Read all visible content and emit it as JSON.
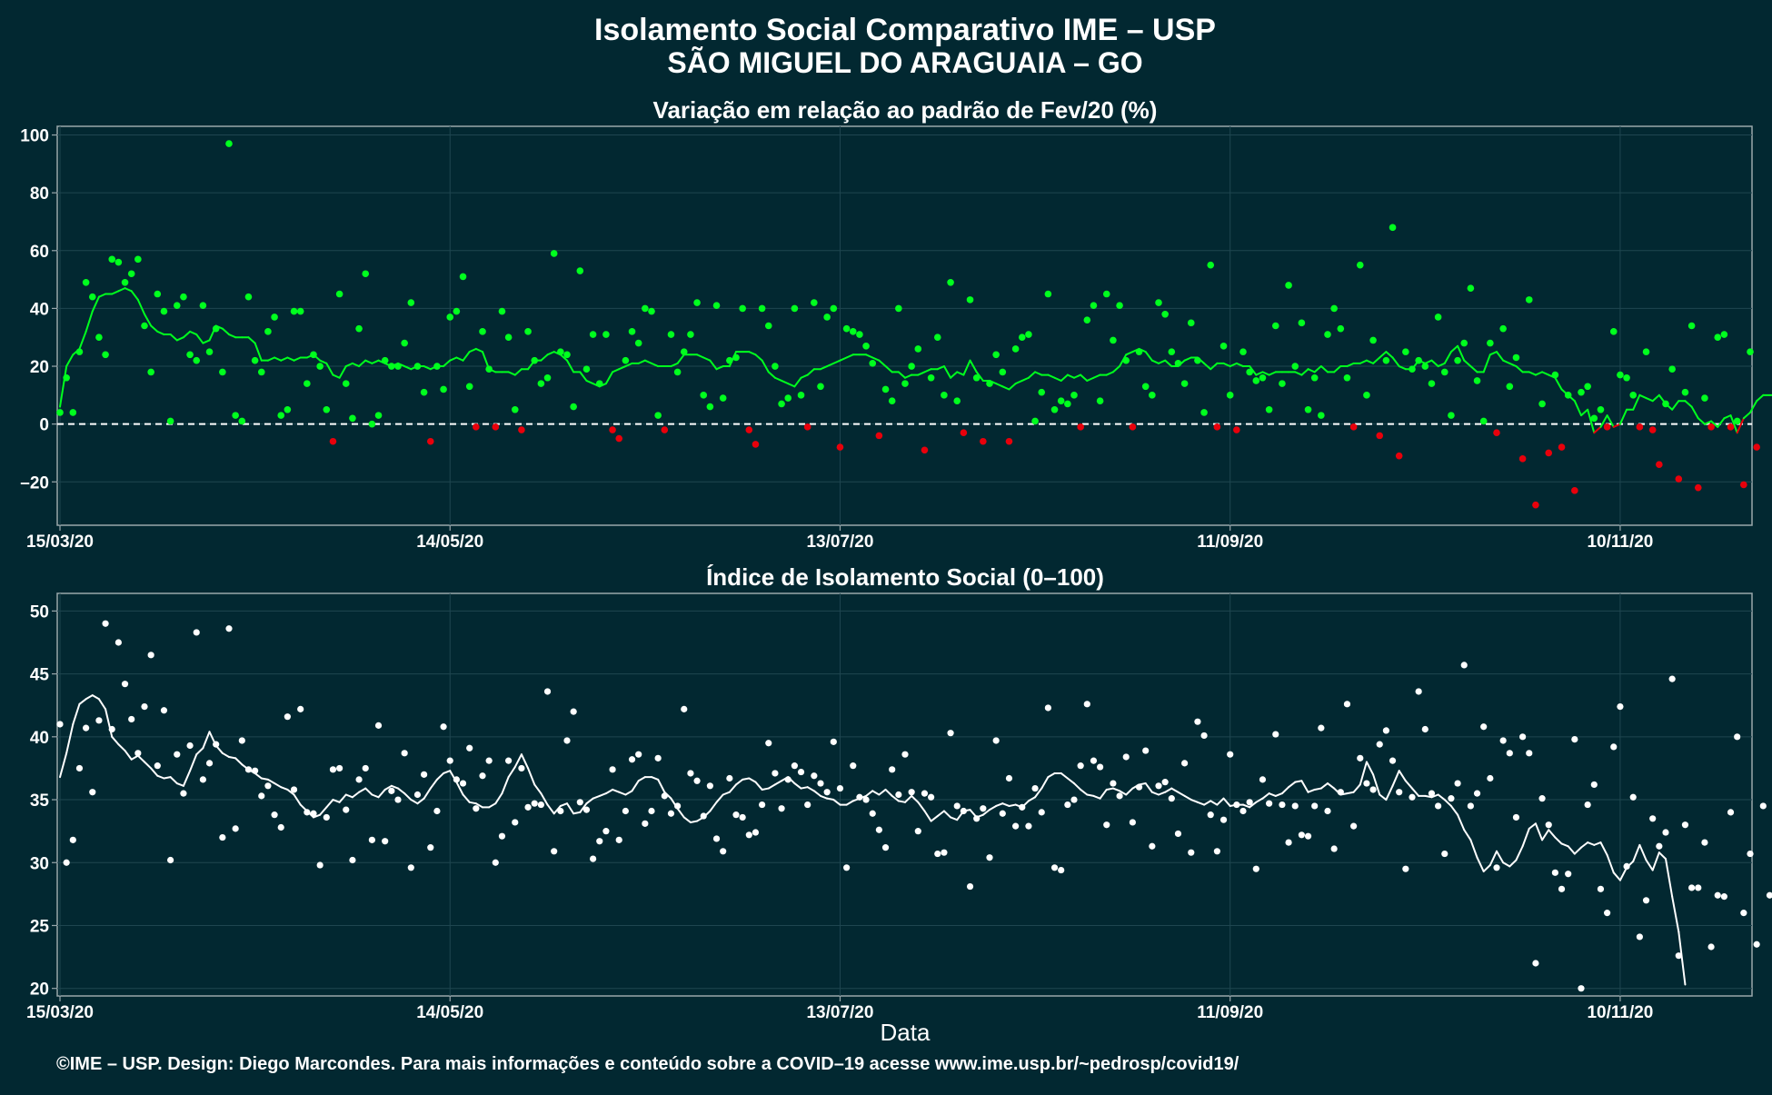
{
  "header": {
    "title": "Isolamento Social Comparativo IME – USP",
    "subtitle": "SÃO MIGUEL DO ARAGUAIA – GO"
  },
  "footer": {
    "credit": "©IME – USP. Design: Diego Marcondes. Para mais informações e conteúdo sobre a COVID–19 acesse www.ime.usp.br/~pedrosp/covid19/"
  },
  "colors": {
    "background": "#022831",
    "panel_border": "#9aa7ab",
    "grid": "#1f4650",
    "positive": "#00ff1e",
    "negative": "#e8000b",
    "index": "#ffffff"
  },
  "chart_data": [
    {
      "type": "scatter",
      "title": "Variação em relação ao padrão de Fev/20 (%)",
      "xlabel": "",
      "ylabel": "",
      "x_start": "15/03/20",
      "x_end": "30/11/20",
      "x_ticks": [
        "15/03/20",
        "14/05/20",
        "13/07/20",
        "11/09/20",
        "10/11/20"
      ],
      "ylim": [
        -35,
        103
      ],
      "y_ticks": [
        -20,
        0,
        20,
        40,
        60,
        80,
        100
      ],
      "y_tick_labels": [
        "–20",
        "0",
        "20",
        "40",
        "60",
        "80",
        "100"
      ],
      "reference_line": 0,
      "grid": true,
      "color_rule": "points and moving-average segments are green when ≥ 0 and red when < 0",
      "series": [
        {
          "values": [
            4,
            16,
            4,
            25,
            49,
            44,
            30,
            24,
            57,
            56,
            49,
            52,
            57,
            34,
            18,
            45,
            39,
            1,
            41,
            44,
            24,
            22,
            41,
            25,
            33,
            18,
            97,
            3,
            1,
            44,
            22,
            18,
            32,
            37,
            3,
            5,
            39,
            39,
            14,
            24,
            20,
            5,
            -6,
            45,
            14,
            2,
            33,
            52,
            0,
            3,
            22,
            20,
            20,
            28,
            42,
            20,
            11,
            -6,
            20,
            12,
            37,
            39,
            51,
            13,
            -1,
            32,
            19,
            -1,
            39,
            30,
            5,
            -2,
            32,
            22,
            14,
            16,
            59,
            25,
            24,
            6,
            53,
            19,
            31,
            14,
            31,
            -2,
            -5,
            22,
            32,
            28,
            40,
            39,
            3,
            -2,
            31,
            18,
            25,
            31,
            42,
            10,
            6,
            41,
            9,
            22,
            23,
            40,
            -2,
            -7,
            40,
            34,
            20,
            7,
            9,
            40,
            10,
            -1,
            42,
            13,
            37,
            40,
            -8,
            33,
            32,
            31,
            27,
            21,
            -4,
            12,
            8,
            40,
            14,
            20,
            26,
            -9,
            16,
            30,
            10,
            49,
            8,
            -3,
            43,
            16,
            -6,
            14,
            24,
            18,
            -6,
            26,
            30,
            31,
            1,
            11,
            45,
            5,
            8,
            7,
            10,
            -1,
            36,
            41,
            8,
            45,
            29,
            41,
            22,
            -1,
            25,
            13,
            10,
            42,
            38,
            25,
            21,
            14,
            35,
            22,
            4,
            55,
            -1,
            27,
            10,
            -2,
            25,
            18,
            15,
            16,
            5,
            34,
            14,
            48,
            20,
            35,
            5,
            16,
            3,
            31,
            40,
            33,
            16,
            -1,
            55,
            10,
            29,
            -4,
            22,
            68,
            -11,
            25,
            19,
            22,
            20,
            14,
            37,
            18,
            3,
            22,
            28,
            47,
            15,
            1,
            28,
            -3,
            33,
            13,
            23,
            -12,
            43,
            -28,
            7,
            -10,
            17,
            -8,
            10,
            -23,
            11,
            13,
            2,
            5,
            -1,
            32,
            17,
            16,
            10,
            -1,
            25,
            -2,
            -14,
            7,
            19,
            -19,
            11,
            34,
            -22,
            9,
            -1,
            30,
            31,
            -1,
            1,
            -21,
            25,
            -8
          ],
          "moving_average": [
            6,
            20,
            24,
            26,
            32,
            39,
            44,
            45,
            45,
            46,
            47,
            46,
            43,
            38,
            34,
            32,
            31,
            31,
            29,
            30,
            32,
            31,
            28,
            29,
            34,
            33,
            31,
            30,
            30,
            30,
            28,
            22,
            22,
            23,
            22,
            23,
            22,
            23,
            23,
            24,
            22,
            21,
            17,
            16,
            20,
            21,
            20,
            22,
            21,
            22,
            21,
            20,
            21,
            20,
            19,
            20,
            20,
            19,
            20,
            20,
            22,
            23,
            22,
            25,
            26,
            25,
            19,
            18,
            18,
            18,
            17,
            19,
            19,
            22,
            22,
            24,
            25,
            24,
            22,
            18,
            18,
            15,
            14,
            13,
            14,
            18,
            19,
            20,
            21,
            21,
            22,
            21,
            20,
            20,
            20,
            21,
            24,
            24,
            24,
            23,
            22,
            19,
            20,
            20,
            25,
            25,
            25,
            24,
            22,
            18,
            16,
            15,
            14,
            13,
            16,
            17,
            19,
            19,
            20,
            21,
            22,
            23,
            24,
            24,
            24,
            23,
            22,
            20,
            18,
            18,
            16,
            17,
            17,
            18,
            19,
            19,
            20,
            16,
            18,
            17,
            22,
            18,
            15,
            15,
            14,
            13,
            12,
            14,
            15,
            16,
            18,
            17,
            17,
            16,
            15,
            17,
            16,
            17,
            15,
            16,
            17,
            17,
            18,
            20,
            24,
            25,
            26,
            25,
            22,
            21,
            22,
            20,
            20,
            22,
            23,
            23,
            21,
            19,
            21,
            21,
            20,
            21,
            20,
            20,
            17,
            18,
            17,
            18,
            18,
            18,
            18,
            17,
            19,
            18,
            20,
            18,
            18,
            20,
            20,
            21,
            21,
            22,
            21,
            23,
            25,
            23,
            20,
            19,
            19,
            22,
            21,
            22,
            20,
            21,
            25,
            27,
            22,
            20,
            18,
            18,
            24,
            25,
            22,
            21,
            20,
            18,
            18,
            17,
            18,
            17,
            16,
            12,
            10,
            8,
            3,
            5,
            -3,
            -1,
            3,
            -1,
            0,
            5,
            5,
            10,
            9,
            8,
            10,
            7,
            5,
            8,
            8,
            6,
            2,
            0,
            1,
            -1,
            2,
            3,
            -3,
            2,
            4,
            8,
            10,
            10,
            10,
            12,
            9,
            7
          ]
        }
      ]
    },
    {
      "type": "scatter",
      "title": "Índice de Isolamento Social (0–100)",
      "xlabel": "Data",
      "ylabel": "",
      "x_start": "15/03/20",
      "x_end": "30/11/20",
      "x_ticks": [
        "15/03/20",
        "14/05/20",
        "13/07/20",
        "11/09/20",
        "10/11/20"
      ],
      "ylim": [
        19.4,
        51.4
      ],
      "y_ticks": [
        20,
        25,
        30,
        35,
        40,
        45,
        50
      ],
      "grid": true,
      "series": [
        {
          "values": [
            41,
            30,
            31.8,
            37.5,
            40.7,
            35.6,
            41.3,
            49,
            40.6,
            47.5,
            44.2,
            41.4,
            38.7,
            42.4,
            46.5,
            37.7,
            42.1,
            30.2,
            38.6,
            35.5,
            39.3,
            48.3,
            36.6,
            37.9,
            39.4,
            32,
            48.6,
            32.7,
            39.7,
            37.4,
            37.3,
            35.3,
            36.1,
            33.8,
            32.8,
            41.6,
            35.8,
            42.2,
            34,
            33.9,
            29.8,
            33.6,
            37.4,
            37.5,
            34.2,
            30.2,
            36.6,
            37.5,
            31.8,
            40.9,
            31.7,
            35.7,
            35,
            38.7,
            29.6,
            35.4,
            37,
            31.2,
            34.1,
            40.8,
            38.1,
            36.6,
            36.3,
            39.1,
            34.3,
            36.9,
            38.1,
            30,
            32.1,
            38.1,
            33.2,
            37.5,
            34.4,
            34.7,
            34.6,
            43.6,
            30.9,
            34.1,
            39.7,
            42,
            34.8,
            34.2,
            30.3,
            31.7,
            32.5,
            37.4,
            31.8,
            34.1,
            38.2,
            38.6,
            33.1,
            34.1,
            38.3,
            35.3,
            33.9,
            34.5,
            42.2,
            37.1,
            36.5,
            33.7,
            36.1,
            31.9,
            30.9,
            36.7,
            33.8,
            33.6,
            32.2,
            32.4,
            34.6,
            39.5,
            37.1,
            34.3,
            36.6,
            37.7,
            37.2,
            34.6,
            36.9,
            36.3,
            35.6,
            39.6,
            35.9,
            29.6,
            37.7,
            35.2,
            35,
            33.9,
            32.6,
            31.2,
            37.4,
            35.4,
            38.6,
            35.6,
            32.5,
            35.5,
            35.2,
            30.7,
            30.8,
            40.3,
            34.5,
            34.1,
            28.1,
            33.5,
            34.3,
            30.4,
            39.7,
            33.9,
            36.7,
            32.9,
            34.4,
            32.9,
            35.9,
            34,
            42.3,
            29.6,
            29.4,
            34.6,
            35,
            37.7,
            42.6,
            38.1,
            37.6,
            33,
            36.3,
            35.3,
            38.4,
            33.2,
            36,
            38.9,
            31.3,
            36.1,
            36.4,
            35.1,
            32.3,
            37.9,
            30.8,
            41.2,
            40.1,
            33.8,
            30.9,
            33.4,
            38.6,
            34.6,
            34.1,
            34.8,
            29.5,
            36.6,
            34.7,
            40.2,
            34.6,
            31.6,
            34.5,
            32.2,
            32.1,
            34.5,
            40.7,
            34.1,
            31.1,
            35.6,
            42.6,
            32.9,
            38.3,
            36.3,
            35.8,
            39.4,
            40.5,
            38.1,
            35.6,
            29.5,
            35.2,
            43.6,
            40.6,
            35.5,
            34.5,
            30.7,
            35.1,
            36.3,
            45.7,
            34.5,
            35.5,
            40.8,
            36.7,
            29.6,
            39.7,
            38.7,
            33.6,
            40,
            38.7,
            22,
            35.1,
            33,
            29.2,
            27.9,
            29.1,
            39.8,
            20,
            34.6,
            36.2,
            27.9,
            26,
            39.2,
            42.4,
            29.7,
            35.2,
            24.1,
            27,
            33.5,
            31.3,
            32.4,
            44.6,
            22.6,
            33,
            28,
            28,
            31.6,
            23.3,
            27.4,
            27.3,
            34,
            40,
            26,
            30.7,
            23.5,
            34.5,
            27.4
          ],
          "moving_average": [
            36.8,
            38.7,
            41,
            42.6,
            43,
            43.3,
            43,
            42.2,
            40,
            39.4,
            38.9,
            38.2,
            38.5,
            38,
            37.5,
            36.9,
            36.7,
            36.8,
            36.3,
            36.1,
            37.3,
            38.6,
            39.1,
            40.4,
            39.3,
            38.7,
            38.4,
            38.3,
            37.8,
            37.4,
            37.1,
            36.7,
            36.6,
            36.3,
            36,
            35.8,
            35.4,
            34.6,
            34.1,
            33.6,
            33.8,
            34.4,
            35,
            34.8,
            35.4,
            35.2,
            35.6,
            35.9,
            35.4,
            35.2,
            35.8,
            36.1,
            35.9,
            35.5,
            35,
            34.7,
            35.1,
            35.9,
            36.6,
            37.1,
            37.3,
            36.4,
            35.4,
            34.8,
            34.7,
            34.4,
            34.4,
            34.7,
            35.5,
            36.8,
            37.6,
            38.6,
            37.5,
            36.2,
            35.5,
            34.6,
            33.9,
            34.5,
            34.7,
            33.9,
            34,
            34.7,
            35.1,
            35.3,
            35.5,
            35.8,
            35.6,
            35.4,
            35.7,
            36.5,
            36.8,
            36.8,
            36.6,
            35.6,
            35.1,
            34.3,
            33.6,
            33.2,
            33.3,
            33.6,
            34.1,
            34.8,
            35.4,
            35.6,
            36.2,
            36.6,
            36.7,
            36.4,
            35.8,
            35.9,
            36.2,
            36.5,
            36.8,
            36.3,
            35.9,
            36,
            35.7,
            35.3,
            35.1,
            35,
            34.6,
            34.6,
            34.9,
            35.1,
            35.3,
            35.7,
            35.4,
            35.8,
            35.3,
            34.9,
            34.8,
            35.3,
            34.8,
            34.1,
            33.3,
            33.7,
            34.1,
            33.6,
            33.4,
            34.1,
            34.2,
            33.6,
            33.8,
            34.2,
            34.5,
            34.7,
            34.5,
            34.6,
            34.4,
            34.9,
            35.2,
            35.9,
            36.8,
            37.1,
            37.1,
            36.7,
            36.3,
            35.8,
            35.4,
            35.3,
            35.1,
            35.8,
            35.9,
            35.7,
            35.4,
            35.9,
            36.2,
            36.3,
            35.6,
            35.4,
            35.6,
            35.9,
            35.6,
            35.3,
            35,
            34.8,
            34.6,
            34.9,
            34.6,
            35.1,
            34.5,
            34.6,
            34.6,
            34.4,
            34.8,
            35.1,
            35.5,
            35.3,
            35.5,
            36,
            36.4,
            36.5,
            35.6,
            35.8,
            35.9,
            36.3,
            35.9,
            35.4,
            35.5,
            35.6,
            36.2,
            38,
            37,
            35.4,
            35,
            36.1,
            37.3,
            36.5,
            35.9,
            35.3,
            35.3,
            35.2,
            35.4,
            35,
            34.5,
            33.8,
            32.6,
            31.8,
            30.4,
            29.3,
            29.8,
            30.9,
            30,
            29.7,
            30.2,
            31.3,
            32.7,
            33.1,
            31.8,
            32.6,
            32,
            31.5,
            31.3,
            30.7,
            31.2,
            31.6,
            31.4,
            31.6,
            30.6,
            29.2,
            28.6,
            29.6,
            30.1,
            31.4,
            30.2,
            29.4,
            30.8,
            30.3,
            27.3,
            24.5,
            20.3
          ]
        }
      ]
    }
  ]
}
